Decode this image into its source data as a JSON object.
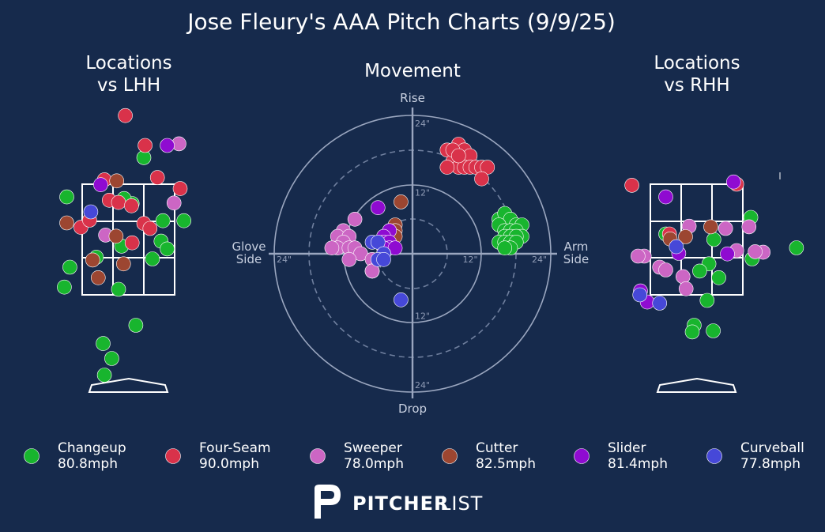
{
  "title": "Jose Fleury's AAA Pitch Charts (9/9/25)",
  "panels": {
    "lhh": "Locations\nvs LHH",
    "movement": "Movement",
    "rhh": "Locations\nvs RHH"
  },
  "movement_axes": {
    "top": "Rise",
    "bottom": "Drop",
    "left": "Glove\nSide",
    "right": "Arm\nSide",
    "ticks": [
      {
        "label": "24\"",
        "pos": "top"
      },
      {
        "label": "12\"",
        "pos": "top"
      },
      {
        "label": "12\"",
        "pos": "bottom"
      },
      {
        "label": "24\"",
        "pos": "bottom"
      },
      {
        "label": "24\"",
        "pos": "left"
      },
      {
        "label": "12\"",
        "pos": "right"
      },
      {
        "label": "24\"",
        "pos": "right"
      }
    ]
  },
  "legend": [
    {
      "name": "Changeup",
      "speed": "80.8mph",
      "color": "#18b52e"
    },
    {
      "name": "Four-Seam",
      "speed": "90.0mph",
      "color": "#d9324a"
    },
    {
      "name": "Sweeper",
      "speed": "78.0mph",
      "color": "#cc66c4"
    },
    {
      "name": "Cutter",
      "speed": "82.5mph",
      "color": "#9c4631"
    },
    {
      "name": "Slider",
      "speed": "81.4mph",
      "color": "#8f0bd1"
    },
    {
      "name": "Curveball",
      "speed": "77.8mph",
      "color": "#4648d8"
    }
  ],
  "brand": {
    "bold": "PITCHER",
    "light": "LIST"
  },
  "chart_data": [
    {
      "type": "scatter",
      "panel": "Locations vs LHH",
      "xlim": [
        -1.5,
        1.5
      ],
      "ylim": [
        -0.5,
        4.5
      ],
      "series": [
        {
          "name": "Changeup",
          "points": [
            [
              -1.0,
              3.27
            ],
            [
              0.25,
              3.98
            ],
            [
              0.06,
              3.15
            ],
            [
              -0.07,
              3.24
            ],
            [
              0.56,
              2.84
            ],
            [
              0.9,
              2.84
            ],
            [
              -0.95,
              2.0
            ],
            [
              -0.52,
              2.18
            ],
            [
              -0.11,
              2.38
            ],
            [
              0.39,
              2.15
            ],
            [
              0.53,
              2.47
            ],
            [
              0.63,
              2.33
            ],
            [
              -1.04,
              1.64
            ],
            [
              -0.16,
              1.6
            ],
            [
              0.12,
              0.95
            ],
            [
              -0.41,
              0.62
            ],
            [
              -0.27,
              0.35
            ],
            [
              -0.39,
              0.05
            ]
          ]
        },
        {
          "name": "Four-Seam",
          "points": [
            [
              -0.05,
              4.74
            ],
            [
              0.27,
              4.2
            ],
            [
              -0.77,
              2.72
            ],
            [
              0.47,
              3.62
            ],
            [
              0.84,
              3.42
            ],
            [
              -0.39,
              3.58
            ],
            [
              -0.31,
              3.21
            ],
            [
              -0.16,
              3.17
            ],
            [
              0.05,
              3.11
            ],
            [
              -0.63,
              2.85
            ],
            [
              0.25,
              2.79
            ],
            [
              0.35,
              2.7
            ],
            [
              0.06,
              2.44
            ]
          ]
        },
        {
          "name": "Sweeper",
          "points": [
            [
              0.82,
              4.23
            ],
            [
              0.74,
              3.16
            ],
            [
              -0.37,
              2.58
            ]
          ]
        },
        {
          "name": "Cutter",
          "points": [
            [
              -0.19,
              3.56
            ],
            [
              -1.0,
              2.8
            ],
            [
              -0.2,
              2.56
            ],
            [
              -0.58,
              2.13
            ],
            [
              -0.08,
              2.06
            ],
            [
              -0.49,
              1.81
            ]
          ]
        },
        {
          "name": "Slider",
          "points": [
            [
              0.63,
              4.2
            ],
            [
              -0.45,
              3.49
            ]
          ]
        },
        {
          "name": "Curveball",
          "points": [
            [
              -0.61,
              3.0
            ]
          ]
        }
      ]
    },
    {
      "type": "scatter",
      "panel": "Movement",
      "xlabel": "Arm Side",
      "ylabel": "Rise",
      "xlim": [
        -24,
        24
      ],
      "ylim": [
        -24,
        24
      ],
      "series": [
        {
          "name": "Four-Seam",
          "points": [
            [
              6,
              18
            ],
            [
              8,
              19
            ],
            [
              9,
              18
            ],
            [
              10,
              17
            ],
            [
              7,
              16
            ],
            [
              8,
              15
            ],
            [
              9,
              15
            ],
            [
              10,
              15
            ],
            [
              11,
              15
            ],
            [
              12,
              15
            ],
            [
              13,
              15
            ],
            [
              6,
              15
            ],
            [
              7,
              18
            ],
            [
              8,
              17
            ],
            [
              12,
              13
            ]
          ]
        },
        {
          "name": "Changeup",
          "points": [
            [
              15,
              6
            ],
            [
              16,
              7
            ],
            [
              17,
              6
            ],
            [
              18,
              5
            ],
            [
              19,
              5
            ],
            [
              15,
              5
            ],
            [
              16,
              4
            ],
            [
              17,
              4
            ],
            [
              18,
              4
            ],
            [
              19,
              3
            ],
            [
              16,
              3
            ],
            [
              17,
              3
            ],
            [
              18,
              3
            ],
            [
              15,
              2
            ],
            [
              16,
              2
            ],
            [
              17,
              2
            ],
            [
              18,
              2
            ],
            [
              17,
              1
            ],
            [
              16,
              1
            ]
          ]
        },
        {
          "name": "Sweeper",
          "points": [
            [
              -10,
              6
            ],
            [
              -12,
              4
            ],
            [
              -13,
              3
            ],
            [
              -11,
              3
            ],
            [
              -12,
              2
            ],
            [
              -13,
              1
            ],
            [
              -11,
              1
            ],
            [
              -10,
              1
            ],
            [
              -9,
              0
            ],
            [
              -14,
              1
            ],
            [
              -11,
              -1
            ],
            [
              -7,
              -1
            ],
            [
              -7,
              -3
            ],
            [
              -7,
              -3
            ],
            [
              -7,
              -3
            ]
          ]
        },
        {
          "name": "Cutter",
          "points": [
            [
              -2,
              9
            ],
            [
              -3,
              5
            ],
            [
              -3,
              4
            ],
            [
              -4,
              4
            ],
            [
              -4,
              3
            ],
            [
              -3,
              3
            ]
          ]
        },
        {
          "name": "Slider",
          "points": [
            [
              -6,
              8
            ],
            [
              -4,
              4
            ],
            [
              -5,
              3
            ],
            [
              -5,
              2
            ],
            [
              -4,
              2
            ],
            [
              -4,
              1
            ],
            [
              -5,
              1
            ],
            [
              -3,
              1
            ]
          ]
        },
        {
          "name": "Curveball",
          "points": [
            [
              -7,
              2
            ],
            [
              -6,
              2
            ],
            [
              -5,
              0
            ],
            [
              -5,
              0
            ],
            [
              -6,
              -1
            ],
            [
              -5,
              -1
            ],
            [
              -2,
              -8
            ]
          ]
        }
      ]
    },
    {
      "type": "scatter",
      "panel": "Locations vs RHH",
      "xlim": [
        -1.5,
        1.5
      ],
      "ylim": [
        -0.5,
        4.5
      ],
      "series": [
        {
          "name": "Changeup",
          "points": [
            [
              0.88,
              2.9
            ],
            [
              0.28,
              2.5
            ],
            [
              -0.5,
              2.6
            ],
            [
              0.9,
              2.15
            ],
            [
              0.2,
              2.06
            ],
            [
              0.05,
              1.93
            ],
            [
              0.36,
              1.81
            ],
            [
              1.62,
              2.35
            ],
            [
              0.17,
              1.4
            ],
            [
              -0.04,
              0.95
            ],
            [
              -0.07,
              0.83
            ],
            [
              0.27,
              0.85
            ]
          ]
        },
        {
          "name": "Four-Seam",
          "points": [
            [
              -1.05,
              3.48
            ],
            [
              0.65,
              3.5
            ],
            [
              -0.44,
              2.6
            ]
          ]
        },
        {
          "name": "Sweeper",
          "points": [
            [
              -0.12,
              2.74
            ],
            [
              0.47,
              2.7
            ],
            [
              0.85,
              2.73
            ],
            [
              1.08,
              2.27
            ],
            [
              0.65,
              2.3
            ],
            [
              0.95,
              2.28
            ],
            [
              -0.85,
              2.2
            ],
            [
              -0.6,
              2.0
            ],
            [
              -0.5,
              1.95
            ],
            [
              -0.95,
              2.2
            ],
            [
              -0.22,
              1.83
            ],
            [
              -0.17,
              1.61
            ]
          ]
        },
        {
          "name": "Cutter",
          "points": [
            [
              -0.18,
              2.55
            ],
            [
              0.23,
              2.73
            ],
            [
              -0.43,
              2.51
            ]
          ]
        },
        {
          "name": "Slider",
          "points": [
            [
              0.6,
              3.54
            ],
            [
              -0.5,
              3.27
            ],
            [
              -0.29,
              2.25
            ],
            [
              0.5,
              2.24
            ],
            [
              -0.91,
              1.57
            ],
            [
              -0.8,
              1.37
            ]
          ]
        },
        {
          "name": "Curveball",
          "points": [
            [
              -0.33,
              2.37
            ],
            [
              -0.92,
              1.5
            ],
            [
              -0.6,
              1.35
            ]
          ]
        }
      ]
    }
  ]
}
